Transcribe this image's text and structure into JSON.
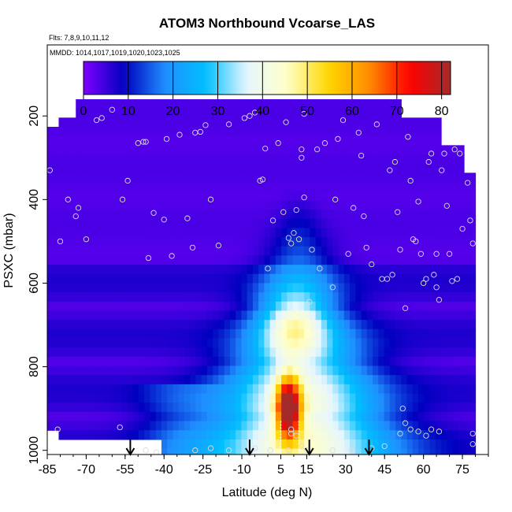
{
  "chart_data": {
    "type": "heatmap",
    "title": "ATOM3 Northbound Vcoarse_LAS",
    "flights_label": "Flts: 7,8,9,10,11,12",
    "dates_label": "MMDD: 1014,1017,1019,1020,1023,1025",
    "xlabel": "Latitude (deg N)",
    "ylabel": "PSXC (mbar)",
    "xlim": [
      -85,
      85
    ],
    "ylim": [
      1010,
      30
    ],
    "x_ticks": [
      -85,
      -70,
      -55,
      -40,
      -25,
      -10,
      5,
      15,
      30,
      45,
      60,
      75
    ],
    "x_tick_labels": [
      "-85",
      "-70",
      "-55",
      "-40",
      "-25",
      "-10",
      "5",
      "15",
      "30",
      "45",
      "60",
      "75"
    ],
    "y_ticks": [
      200,
      400,
      600,
      800,
      1000
    ],
    "y_tick_labels": [
      "200",
      "400",
      "600",
      "800",
      "1000"
    ],
    "colorbar": {
      "range": [
        0,
        82
      ],
      "ticks": [
        0,
        10,
        20,
        30,
        40,
        50,
        60,
        70,
        80
      ],
      "tick_labels": [
        "0",
        "10",
        "20",
        "30",
        "40",
        "50",
        "60",
        "70",
        "80"
      ],
      "colors": [
        "#7f00ff",
        "#0000bf",
        "#1f8fff",
        "#00bfff",
        "#e6f6ff",
        "#ffffc8",
        "#ffd700",
        "#ff8c00",
        "#ff0000",
        "#a52a2a"
      ]
    },
    "flight_markers_lat": [
      -53,
      -7,
      16,
      39
    ],
    "cloud_band_lat": [
      5,
      12
    ],
    "sample_points": [
      {
        "lat": -84,
        "p": 330
      },
      {
        "lat": -80,
        "p": 500
      },
      {
        "lat": -77,
        "p": 400
      },
      {
        "lat": -74,
        "p": 440
      },
      {
        "lat": -73,
        "p": 420
      },
      {
        "lat": -70,
        "p": 495
      },
      {
        "lat": -66,
        "p": 210
      },
      {
        "lat": -64,
        "p": 205
      },
      {
        "lat": -60,
        "p": 185
      },
      {
        "lat": -56,
        "p": 400
      },
      {
        "lat": -54,
        "p": 355
      },
      {
        "lat": -50,
        "p": 265
      },
      {
        "lat": -48,
        "p": 262
      },
      {
        "lat": -47,
        "p": 262
      },
      {
        "lat": -46,
        "p": 540
      },
      {
        "lat": -44,
        "p": 432
      },
      {
        "lat": -40,
        "p": 448
      },
      {
        "lat": -39,
        "p": 255
      },
      {
        "lat": -37,
        "p": 535
      },
      {
        "lat": -34,
        "p": 245
      },
      {
        "lat": -31,
        "p": 445
      },
      {
        "lat": -29,
        "p": 515
      },
      {
        "lat": -28,
        "p": 240
      },
      {
        "lat": -26,
        "p": 238
      },
      {
        "lat": -24,
        "p": 222
      },
      {
        "lat": -22,
        "p": 400
      },
      {
        "lat": -19,
        "p": 510
      },
      {
        "lat": -15,
        "p": 220
      },
      {
        "lat": -9,
        "p": 205
      },
      {
        "lat": -7,
        "p": 200
      },
      {
        "lat": -5,
        "p": 192
      },
      {
        "lat": -3,
        "p": 355
      },
      {
        "lat": -2,
        "p": 352
      },
      {
        "lat": -1,
        "p": 278
      },
      {
        "lat": 0,
        "p": 565
      },
      {
        "lat": 2,
        "p": 450
      },
      {
        "lat": 4,
        "p": 265
      },
      {
        "lat": 6,
        "p": 430
      },
      {
        "lat": 7,
        "p": 215
      },
      {
        "lat": 8,
        "p": 492
      },
      {
        "lat": 9,
        "p": 505
      },
      {
        "lat": 10,
        "p": 480
      },
      {
        "lat": 11,
        "p": 425
      },
      {
        "lat": 12,
        "p": 495
      },
      {
        "lat": 13,
        "p": 280
      },
      {
        "lat": 13,
        "p": 300
      },
      {
        "lat": 14,
        "p": 395
      },
      {
        "lat": 14,
        "p": 195
      },
      {
        "lat": 16,
        "p": 645
      },
      {
        "lat": 17,
        "p": 520
      },
      {
        "lat": 19,
        "p": 280
      },
      {
        "lat": 20,
        "p": 565
      },
      {
        "lat": 22,
        "p": 265
      },
      {
        "lat": 25,
        "p": 610
      },
      {
        "lat": 26,
        "p": 400
      },
      {
        "lat": 27,
        "p": 255
      },
      {
        "lat": 29,
        "p": 210
      },
      {
        "lat": 31,
        "p": 530
      },
      {
        "lat": 33,
        "p": 420
      },
      {
        "lat": 35,
        "p": 240
      },
      {
        "lat": 36,
        "p": 295
      },
      {
        "lat": 37,
        "p": 440
      },
      {
        "lat": 38,
        "p": 515
      },
      {
        "lat": 40,
        "p": 555
      },
      {
        "lat": 42,
        "p": 220
      },
      {
        "lat": 44,
        "p": 590
      },
      {
        "lat": 46,
        "p": 590
      },
      {
        "lat": 47,
        "p": 330
      },
      {
        "lat": 48,
        "p": 580
      },
      {
        "lat": 49,
        "p": 310
      },
      {
        "lat": 50,
        "p": 430
      },
      {
        "lat": 51,
        "p": 520
      },
      {
        "lat": 52,
        "p": 900
      },
      {
        "lat": 53,
        "p": 660
      },
      {
        "lat": 54,
        "p": 250
      },
      {
        "lat": 55,
        "p": 355
      },
      {
        "lat": 56,
        "p": 495
      },
      {
        "lat": 57,
        "p": 500
      },
      {
        "lat": 58,
        "p": 405
      },
      {
        "lat": 59,
        "p": 530
      },
      {
        "lat": 60,
        "p": 600
      },
      {
        "lat": 61,
        "p": 590
      },
      {
        "lat": 62,
        "p": 310
      },
      {
        "lat": 63,
        "p": 290
      },
      {
        "lat": 64,
        "p": 580
      },
      {
        "lat": 65,
        "p": 610
      },
      {
        "lat": 65,
        "p": 530
      },
      {
        "lat": 66,
        "p": 640
      },
      {
        "lat": 67,
        "p": 330
      },
      {
        "lat": 68,
        "p": 290
      },
      {
        "lat": 69,
        "p": 415
      },
      {
        "lat": 70,
        "p": 530
      },
      {
        "lat": 71,
        "p": 595
      },
      {
        "lat": 72,
        "p": 280
      },
      {
        "lat": 73,
        "p": 590
      },
      {
        "lat": 74,
        "p": 290
      },
      {
        "lat": 75,
        "p": 470
      },
      {
        "lat": 77,
        "p": 360
      },
      {
        "lat": 78,
        "p": 450
      },
      {
        "lat": 79,
        "p": 505
      },
      {
        "lat": -81,
        "p": 950
      },
      {
        "lat": -57,
        "p": 945
      },
      {
        "lat": -47,
        "p": 1000
      },
      {
        "lat": -43,
        "p": 1005
      },
      {
        "lat": -28,
        "p": 1000
      },
      {
        "lat": -22,
        "p": 995
      },
      {
        "lat": -15,
        "p": 1000
      },
      {
        "lat": -5,
        "p": 995
      },
      {
        "lat": 1,
        "p": 1000
      },
      {
        "lat": 8,
        "p": 1000
      },
      {
        "lat": 13,
        "p": 990
      },
      {
        "lat": 15,
        "p": 1000
      },
      {
        "lat": 25,
        "p": 1000
      },
      {
        "lat": 32,
        "p": 1000
      },
      {
        "lat": 40,
        "p": 995
      },
      {
        "lat": 45,
        "p": 990
      },
      {
        "lat": 51,
        "p": 960
      },
      {
        "lat": 53,
        "p": 935
      },
      {
        "lat": 55,
        "p": 950
      },
      {
        "lat": 58,
        "p": 955
      },
      {
        "lat": 61,
        "p": 965
      },
      {
        "lat": 63,
        "p": 950
      },
      {
        "lat": 66,
        "p": 955
      },
      {
        "lat": 79,
        "p": 960
      },
      {
        "lat": 79,
        "p": 985
      },
      {
        "lat": 9,
        "p": 960
      },
      {
        "lat": 11,
        "p": 965
      },
      {
        "lat": 9,
        "p": 950
      }
    ]
  }
}
